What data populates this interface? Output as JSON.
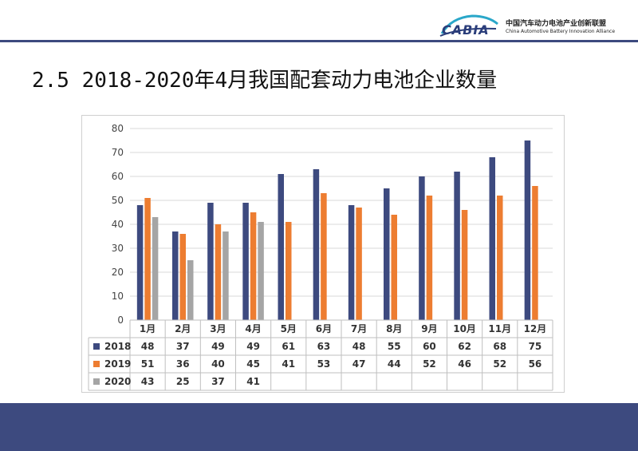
{
  "header": {
    "logo_mark": "CABIA",
    "org_cn": "中国汽车动力电池产业创新联盟",
    "org_en": "China Automotive Battery Innovation Alliance"
  },
  "page_title": "2.5 2018-2020年4月我国配套动力电池企业数量",
  "colors": {
    "s2018": "#3d4a7f",
    "s2019": "#ed7d31",
    "s2020": "#a5a5a5",
    "band": "#3d4a7f"
  },
  "chart_data": {
    "type": "bar",
    "title": "",
    "xlabel": "",
    "ylabel": "",
    "ylim": [
      0,
      80
    ],
    "yticks": [
      0,
      10,
      20,
      30,
      40,
      50,
      60,
      70,
      80
    ],
    "grid": true,
    "legend": "data-table-below",
    "categories": [
      "1月",
      "2月",
      "3月",
      "4月",
      "5月",
      "6月",
      "7月",
      "8月",
      "9月",
      "10月",
      "11月",
      "12月"
    ],
    "series": [
      {
        "name": "2018",
        "values": [
          48,
          37,
          49,
          49,
          61,
          63,
          48,
          55,
          60,
          62,
          68,
          75
        ]
      },
      {
        "name": "2019",
        "values": [
          51,
          36,
          40,
          45,
          41,
          53,
          47,
          44,
          52,
          46,
          52,
          56
        ]
      },
      {
        "name": "2020",
        "values": [
          43,
          25,
          37,
          41,
          null,
          null,
          null,
          null,
          null,
          null,
          null,
          null
        ]
      }
    ]
  }
}
